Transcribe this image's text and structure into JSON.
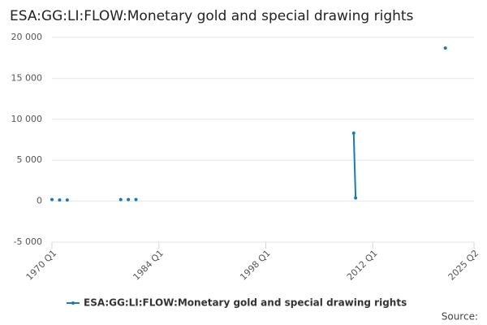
{
  "chart_data": {
    "type": "line",
    "title": "ESA:GG:LI:FLOW:Monetary gold and special drawing rights",
    "x": [
      "1970 Q1",
      "1971 Q1",
      "1972 Q1",
      "1979 Q1",
      "1980 Q1",
      "1981 Q1",
      "2009 Q3",
      "2009 Q4",
      "2021 Q3"
    ],
    "series": [
      {
        "name": "ESA:GG:LI:FLOW:Monetary gold and special drawing rights",
        "color": "#1a7ab8",
        "values": [
          200,
          150,
          150,
          200,
          200,
          200,
          8300,
          400,
          18700
        ]
      }
    ],
    "xlim": [
      "1970 Q1",
      "2025 Q2"
    ],
    "xticks": [
      "1970 Q1",
      "1984 Q1",
      "1998 Q1",
      "2012 Q1",
      "2025 Q2"
    ],
    "ylim": [
      -5000,
      20000
    ],
    "yticks": [
      {
        "value": -5000,
        "label": "-5 000"
      },
      0,
      {
        "value": 5000,
        "label": "5 000"
      },
      {
        "value": 10000,
        "label": "10 000"
      },
      {
        "value": 15000,
        "label": "15 000"
      },
      {
        "value": 20000,
        "label": "20 000"
      }
    ],
    "grid": true,
    "source": "Source:"
  }
}
